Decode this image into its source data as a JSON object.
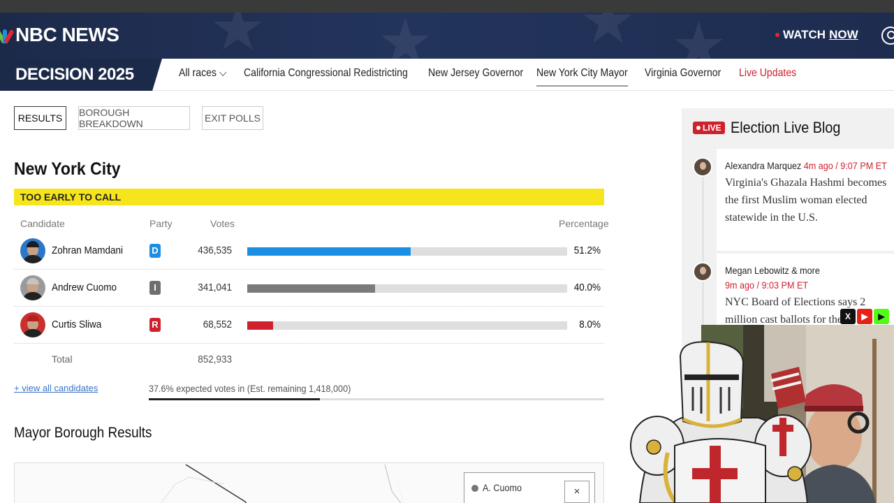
{
  "header": {
    "brand": "NBC NEWS",
    "watch_label": "WATCH",
    "watch_now": "NOW"
  },
  "decision": {
    "badge": "DECISION 2025",
    "nav": [
      {
        "label": "All races ⌵"
      },
      {
        "label": "California Congressional Redistricting"
      },
      {
        "label": "New Jersey Governor"
      },
      {
        "label": "New York City Mayor"
      },
      {
        "label": "Virginia Governor"
      },
      {
        "label": "Live Updates"
      }
    ]
  },
  "tabs": [
    "RESULTS",
    "BOROUGH BREAKDOWN",
    "EXIT POLLS"
  ],
  "race": {
    "title": "New York City",
    "status": "TOO EARLY TO CALL",
    "columns": {
      "candidate": "Candidate",
      "party": "Party",
      "votes": "Votes",
      "percentage": "Percentage"
    },
    "candidates": [
      {
        "name": "Zohran Mamdani",
        "party": "D",
        "votes": "436,535",
        "pct_label": "51.2%",
        "pct": 51.2,
        "color": "#1a8fe3",
        "party_color": "#1a8fe3",
        "hair": "#1d1d1d"
      },
      {
        "name": "Andrew Cuomo",
        "party": "I",
        "votes": "341,041",
        "pct_label": "40.0%",
        "pct": 40.0,
        "color": "#7a7a7a",
        "party_color": "#6f6f6f",
        "hair": "#b8b8b8"
      },
      {
        "name": "Curtis Sliwa",
        "party": "R",
        "votes": "68,552",
        "pct_label": "8.0%",
        "pct": 8.0,
        "color": "#d0202d",
        "party_color": "#d0202d",
        "hair": "#b32020"
      }
    ],
    "total_label": "Total",
    "total_votes": "852,933",
    "view_all": "+ view all candidates",
    "expected": "37.6% expected votes in (Est. remaining 1,418,000)",
    "expected_pct": 37.6
  },
  "borough": {
    "title": "Mayor Borough Results",
    "legend_label": "A. Cuomo",
    "close": "×"
  },
  "liveblog": {
    "live_badge": "LIVE",
    "title": "Election Live Blog",
    "posts": [
      {
        "author": "Alexandra Marquez",
        "time": "4m ago / 9:07 PM ET",
        "text": "Virginia's Ghazala Hashmi becomes the first Muslim woman elected statewide in the U.S."
      },
      {
        "author": "Megan Lebowitz & more",
        "time": "9m ago / 9:03 PM ET",
        "text": "NYC Board of Elections says 2 million cast ballots for the"
      }
    ]
  },
  "social": [
    "X",
    "▶",
    "▶"
  ],
  "colors": {
    "navy": "#1c2a4a",
    "accent_red": "#d0202d",
    "banner_yellow": "#f6e51c"
  }
}
